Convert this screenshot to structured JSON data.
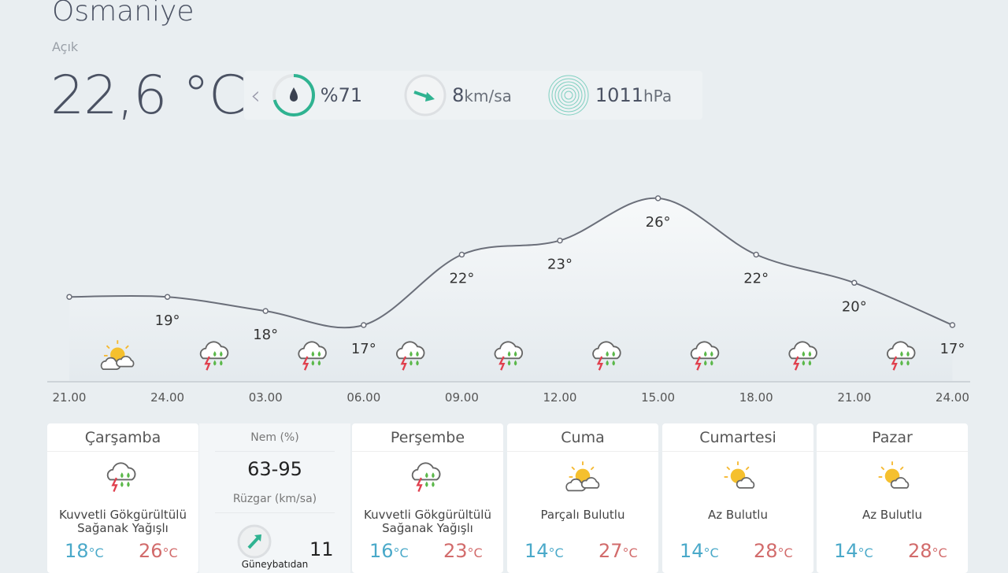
{
  "location": {
    "city": "Osmaniye",
    "condition": "Açık",
    "temperature": "22,6 °C"
  },
  "stats": {
    "humidity": "%71",
    "humidity_percent": 71,
    "wind_value": "8",
    "wind_unit": "km/sa",
    "pressure_value": "1011",
    "pressure_unit": "hPa"
  },
  "chart_data": {
    "type": "line",
    "x": [
      "21.00",
      "24.00",
      "03.00",
      "06.00",
      "09.00",
      "12.00",
      "15.00",
      "18.00",
      "21.00",
      "24.00"
    ],
    "values": [
      19,
      19,
      18,
      17,
      22,
      23,
      26,
      22,
      20,
      17
    ],
    "labels": [
      "",
      "19°",
      "18°",
      "17°",
      "22°",
      "23°",
      "26°",
      "22°",
      "20°",
      "17°"
    ],
    "icons": [
      "partly-sunny",
      "thunderstorm",
      "thunderstorm",
      "thunderstorm",
      "thunderstorm",
      "thunderstorm",
      "thunderstorm",
      "thunderstorm",
      "thunderstorm"
    ]
  },
  "days": [
    {
      "name": "Çarşamba",
      "desc1": "Kuvvetli Gökgürültülü",
      "desc2": "Sağanak Yağışlı",
      "lo": "18",
      "hi": "26",
      "icon": "thunderstorm"
    },
    {
      "name": "Perşembe",
      "desc1": "Kuvvetli Gökgürültülü",
      "desc2": "Sağanak Yağışlı",
      "lo": "16",
      "hi": "23",
      "icon": "thunderstorm"
    },
    {
      "name": "Cuma",
      "desc1": "Parçalı Bulutlu",
      "desc2": "",
      "lo": "14",
      "hi": "27",
      "icon": "partly-cloudy"
    },
    {
      "name": "Cumartesi",
      "desc1": "Az Bulutlu",
      "desc2": "",
      "lo": "14",
      "hi": "28",
      "icon": "mostly-sunny"
    },
    {
      "name": "Pazar",
      "desc1": "Az Bulutlu",
      "desc2": "",
      "lo": "14",
      "hi": "28",
      "icon": "mostly-sunny"
    }
  ],
  "unit": "°C",
  "extra": {
    "humidity_label": "Nem (%)",
    "humidity_range": "63-95",
    "wind_label": "Rüzgar (km/sa)",
    "wind_dir": "Güneybatıdan",
    "wind_speed": "11"
  },
  "colors": {
    "accent": "#2fb391",
    "cold": "#4aa9c9",
    "hot": "#d26b6b"
  }
}
